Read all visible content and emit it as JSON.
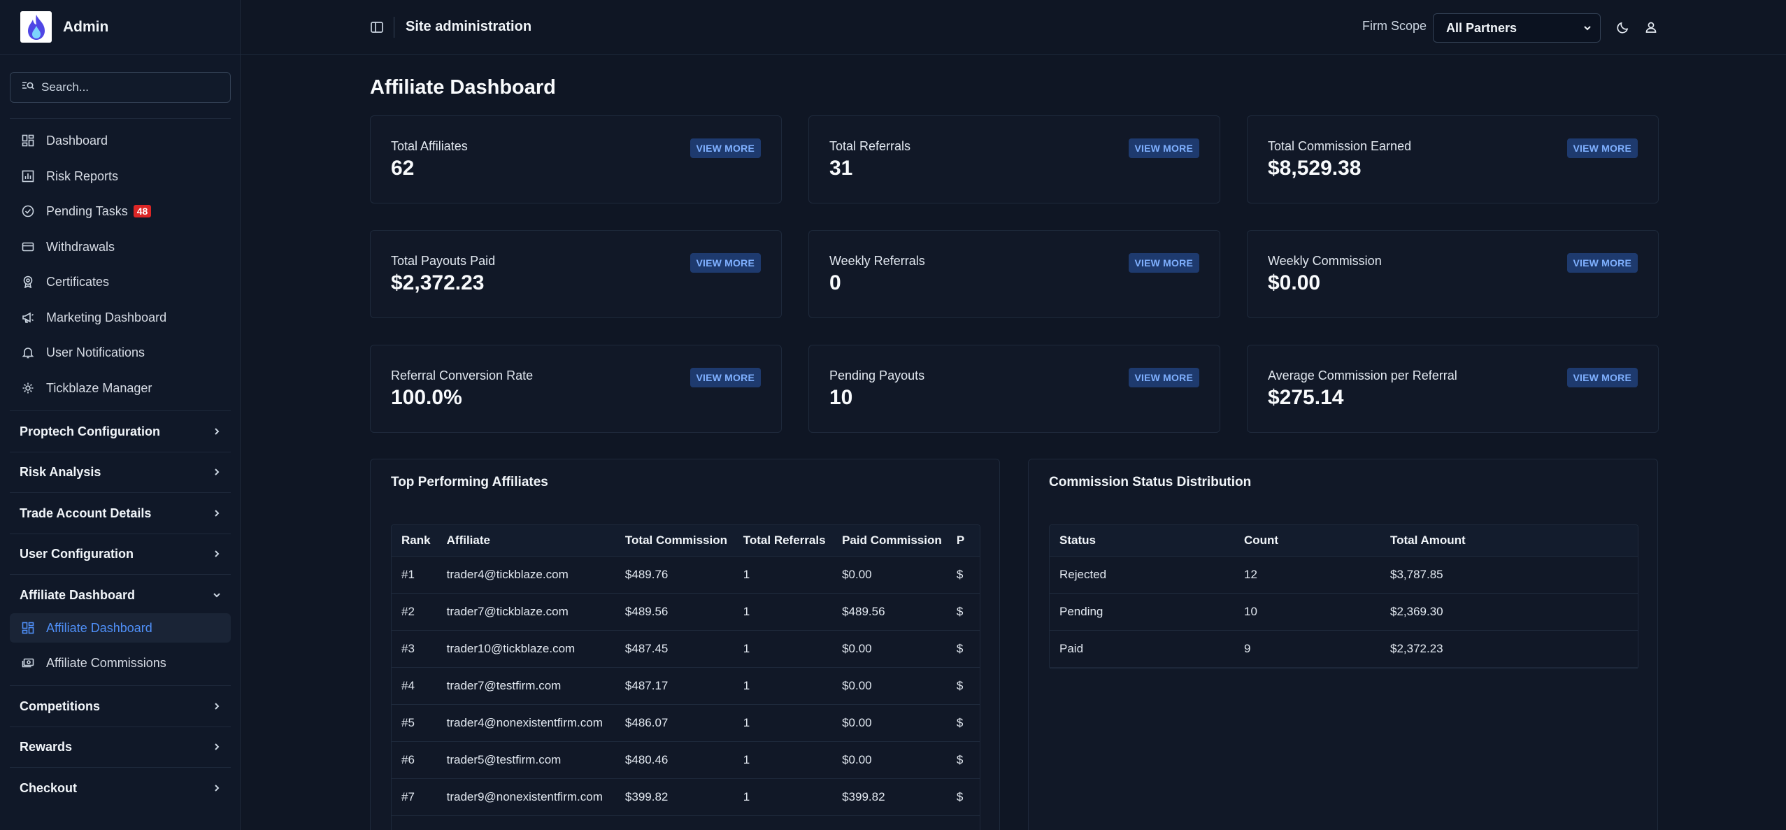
{
  "app": {
    "name": "Admin"
  },
  "search": {
    "placeholder": "Search..."
  },
  "sidebar": {
    "items": [
      {
        "label": "Dashboard",
        "icon": "grid-icon"
      },
      {
        "label": "Risk Reports",
        "icon": "bar-chart-icon"
      },
      {
        "label": "Pending Tasks",
        "icon": "check-circle-icon",
        "badge": "48"
      },
      {
        "label": "Withdrawals",
        "icon": "credit-card-icon"
      },
      {
        "label": "Certificates",
        "icon": "award-icon"
      },
      {
        "label": "Marketing Dashboard",
        "icon": "megaphone-icon"
      },
      {
        "label": "User Notifications",
        "icon": "bell-icon"
      },
      {
        "label": "Tickblaze Manager",
        "icon": "gear-icon"
      }
    ],
    "sections": [
      {
        "label": "Proptech Configuration"
      },
      {
        "label": "Risk Analysis"
      },
      {
        "label": "Trade Account Details"
      },
      {
        "label": "User Configuration"
      },
      {
        "label": "Affiliate Dashboard",
        "expanded": true
      },
      {
        "label": "Competitions"
      },
      {
        "label": "Rewards"
      },
      {
        "label": "Checkout"
      }
    ],
    "sub_items": [
      {
        "label": "Affiliate Dashboard",
        "icon": "grid-icon",
        "active": true
      },
      {
        "label": "Affiliate Commissions",
        "icon": "cash-icon"
      }
    ]
  },
  "header": {
    "title": "Site administration",
    "scope_label": "Firm Scope",
    "scope_value": "All Partners"
  },
  "page": {
    "title": "Affiliate Dashboard"
  },
  "cards": [
    {
      "label": "Total Affiliates",
      "value": "62",
      "button": "VIEW MORE"
    },
    {
      "label": "Total Referrals",
      "value": "31",
      "button": "VIEW MORE"
    },
    {
      "label": "Total Commission Earned",
      "value": "$8,529.38",
      "button": "VIEW MORE"
    },
    {
      "label": "Total Payouts Paid",
      "value": "$2,372.23",
      "button": "VIEW MORE"
    },
    {
      "label": "Weekly Referrals",
      "value": "0",
      "button": "VIEW MORE"
    },
    {
      "label": "Weekly Commission",
      "value": "$0.00",
      "button": "VIEW MORE"
    },
    {
      "label": "Referral Conversion Rate",
      "value": "100.0%",
      "button": "VIEW MORE"
    },
    {
      "label": "Pending Payouts",
      "value": "10",
      "button": "VIEW MORE"
    },
    {
      "label": "Average Commission per Referral",
      "value": "$275.14",
      "button": "VIEW MORE"
    }
  ],
  "top_affiliates": {
    "title": "Top Performing Affiliates",
    "columns": [
      "Rank",
      "Affiliate",
      "Total Commission",
      "Total Referrals",
      "Paid Commission",
      "P"
    ],
    "rows": [
      [
        "#1",
        "trader4@tickblaze.com",
        "$489.76",
        "1",
        "$0.00",
        "$"
      ],
      [
        "#2",
        "trader7@tickblaze.com",
        "$489.56",
        "1",
        "$489.56",
        "$"
      ],
      [
        "#3",
        "trader10@tickblaze.com",
        "$487.45",
        "1",
        "$0.00",
        "$"
      ],
      [
        "#4",
        "trader7@testfirm.com",
        "$487.17",
        "1",
        "$0.00",
        "$"
      ],
      [
        "#5",
        "trader4@nonexistentfirm.com",
        "$486.07",
        "1",
        "$0.00",
        "$"
      ],
      [
        "#6",
        "trader5@testfirm.com",
        "$480.46",
        "1",
        "$0.00",
        "$"
      ],
      [
        "#7",
        "trader9@nonexistentfirm.com",
        "$399.82",
        "1",
        "$399.82",
        "$"
      ]
    ]
  },
  "commission_status": {
    "title": "Commission Status Distribution",
    "columns": [
      "Status",
      "Count",
      "Total Amount"
    ],
    "rows": [
      [
        "Rejected",
        "12",
        "$3,787.85"
      ],
      [
        "Pending",
        "10",
        "$2,369.30"
      ],
      [
        "Paid",
        "9",
        "$2,372.23"
      ]
    ]
  },
  "colors": {
    "accent": "#4f8ff7",
    "badge": "#dc2626",
    "background": "#0f1624"
  }
}
